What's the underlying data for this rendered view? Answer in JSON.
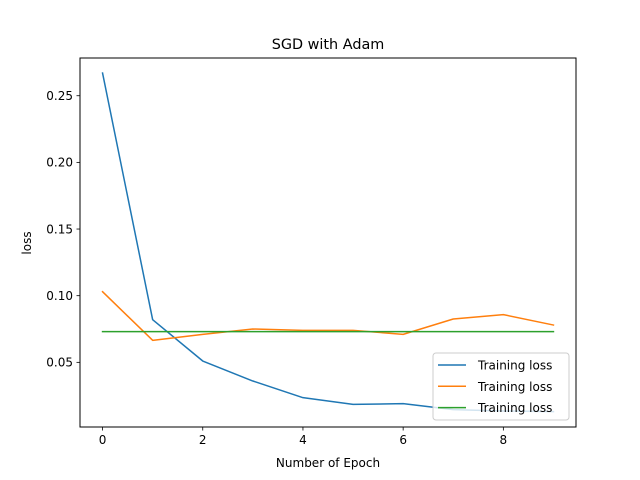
{
  "chart_data": {
    "type": "line",
    "title": "SGD with Adam",
    "xlabel": "Number of Epoch",
    "ylabel": "loss",
    "x": [
      0,
      1,
      2,
      3,
      4,
      5,
      6,
      7,
      8,
      9
    ],
    "xlim": [
      -0.45,
      9.45
    ],
    "ylim": [
      0.0015,
      0.2783
    ],
    "xticks": [
      0,
      2,
      4,
      6,
      8
    ],
    "xtick_labels": [
      "0",
      "2",
      "4",
      "6",
      "8"
    ],
    "yticks": [
      0.05,
      0.1,
      0.15,
      0.2,
      0.25
    ],
    "ytick_labels": [
      "0.05",
      "0.10",
      "0.15",
      "0.20",
      "0.25"
    ],
    "grid": false,
    "legend_position": "lower-right",
    "series": [
      {
        "name": "Training loss",
        "color": "#1f77b4",
        "values": [
          0.267,
          0.082,
          0.051,
          0.036,
          0.0235,
          0.0185,
          0.019,
          0.0145,
          0.0135,
          0.013
        ]
      },
      {
        "name": "Training loss",
        "color": "#ff7f0e",
        "values": [
          0.103,
          0.0665,
          0.071,
          0.075,
          0.074,
          0.074,
          0.071,
          0.0825,
          0.0858,
          0.078
        ]
      },
      {
        "name": "Training loss",
        "color": "#2ca02c",
        "values": [
          0.073,
          0.073,
          0.073,
          0.073,
          0.073,
          0.073,
          0.073,
          0.073,
          0.073,
          0.073
        ]
      }
    ]
  }
}
